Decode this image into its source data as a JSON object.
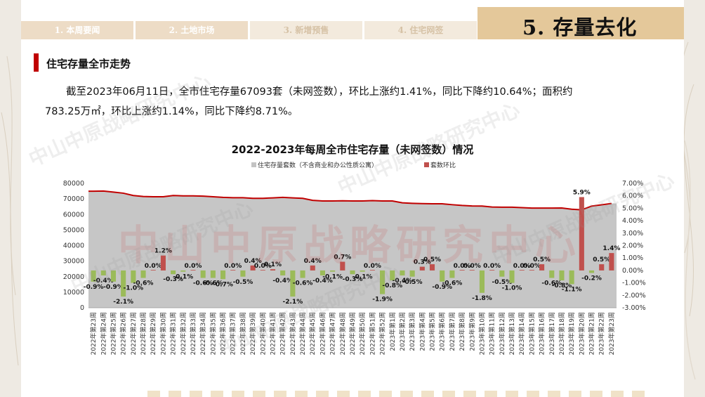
{
  "header": {
    "tabs": [
      "1. 本周要闻",
      "2. 土地市场",
      "3. 新增预售",
      "4. 住宅网签"
    ],
    "section_title": "5. 存量去化"
  },
  "section": {
    "title": "住宅存量全市走势"
  },
  "summary": {
    "line1": "截至2023年06月11日，全市住宅存量67093套（未网签数），环比上涨约1.41%，同比下降约10.64%；面积约",
    "line2": "783.25万㎡，环比上涨约1.14%，同比下降约8.71%。"
  },
  "watermark": {
    "text": "中山中原战略研究中心"
  },
  "colors": {
    "area": "#c3c3c3",
    "line": "#c00000",
    "pos_bar": "#c0504d",
    "neg_bar": "#9bbb59",
    "title_box": "#e4c89a"
  },
  "chart_data": {
    "type": "area",
    "title": "2022-2023年每周全市住宅存量（未网签数）情况",
    "legend": [
      "住宅存量套数（不含商业和办公性质公寓）",
      "套数环比"
    ],
    "legend_position": "top",
    "categories": [
      "2022年第23周",
      "2022年第24周",
      "2022年第25周",
      "2022年第26周",
      "2022年第27周",
      "2022年第28周",
      "2022年第29周",
      "2022年第30周",
      "2022年第31周",
      "2022年第32周",
      "2022年第33周",
      "2022年第34周",
      "2022年第35周",
      "2022年第36周",
      "2022年第37周",
      "2022年第38周",
      "2022年第39周",
      "2022年第40周",
      "2022年第41周",
      "2022年第42周",
      "2022年第43周",
      "2022年第44周",
      "2022年第45周",
      "2022年第46周",
      "2022年第47周",
      "2022年第48周",
      "2022年第49周",
      "2022年第50周",
      "2022年第51周",
      "2022年第52周",
      "2023年第1周",
      "2023年第2周",
      "2023年第3周",
      "2023年第4周",
      "2023年第5周",
      "2023年第6周",
      "2023年第7周",
      "2023年第8周",
      "2023年第9周",
      "2023年第10周",
      "2023年第11周",
      "2023年第12周",
      "2023年第13周",
      "2023年第14周",
      "2023年第15周",
      "2023年第16周",
      "2023年第17周",
      "2023年第18周",
      "2023年第19周",
      "2023年第20周",
      "2023年第21周",
      "2023年第22周",
      "2023年第23周"
    ],
    "series": [
      {
        "name": "住宅存量套数（不含商业和办公性质公寓）",
        "axis": "left",
        "type": "area",
        "values": [
          75000,
          75100,
          74400,
          73700,
          72200,
          71600,
          71400,
          71400,
          72200,
          72000,
          72000,
          71800,
          71400,
          71000,
          70800,
          70800,
          70400,
          70400,
          70700,
          71000,
          70700,
          70400,
          69100,
          68700,
          68700,
          68800,
          68700,
          68700,
          68900,
          68700,
          68700,
          67500,
          67200,
          67000,
          66900,
          66900,
          66300,
          65800,
          65500,
          65400,
          64800,
          64700,
          64700,
          64400,
          64100,
          64100,
          64100,
          64200,
          63400,
          63000,
          65400,
          66200,
          67093
        ]
      },
      {
        "name": "套数环比",
        "axis": "right",
        "type": "bar",
        "values": [
          -0.9,
          -0.4,
          -0.9,
          -2.1,
          -1.0,
          -0.6,
          0.0,
          1.2,
          -0.3,
          -0.1,
          0.0,
          -0.6,
          -0.6,
          -0.7,
          0.0,
          -0.5,
          0.4,
          0.0,
          0.1,
          -0.4,
          -2.1,
          -0.6,
          0.4,
          -0.4,
          -0.1,
          0.7,
          -0.3,
          -0.1,
          0.0,
          -1.9,
          -0.8,
          -0.4,
          -0.5,
          0.3,
          0.5,
          -0.9,
          -0.6,
          0.0,
          0.0,
          -1.8,
          0.0,
          -0.5,
          -1.0,
          0.0,
          0.0,
          0.5,
          -0.6,
          -0.8,
          -1.1,
          5.9,
          -0.2,
          0.5,
          1.4
        ],
        "labels": [
          "-0.9%",
          "-0.4%",
          "-0.9%",
          "-2.1%",
          "-1.0%",
          "-0.6%",
          "0.0%",
          "1.2%",
          "-0.3%",
          "-0.1%",
          "0.0%",
          "-0.6%",
          "-0.6%",
          "-0.7%",
          "0.0%",
          "-0.5%",
          "0.4%",
          "0.0%",
          "0.1%",
          "-0.4%",
          "-2.1%",
          "-0.6%",
          "0.4%",
          "-0.4%",
          "-0.1%",
          "0.7%",
          "-0.3%",
          "-0.1%",
          "0.0%",
          "-1.9%",
          "-0.8%",
          "-0.4%",
          "-0.5%",
          "0.3%",
          "0.5%",
          "-0.9%",
          "-0.6%",
          "0.0%",
          "0.0%",
          "-1.8%",
          "0.0%",
          "-0.5%",
          "-1.0%",
          "0.0%",
          "0.0%",
          "0.5%",
          "-0.6%",
          "-0.8%",
          "-1.1%",
          "5.9%",
          "-0.2%",
          "0.5%",
          "1.4%"
        ]
      }
    ],
    "ylim_left": [
      0,
      80000
    ],
    "yticks_left": [
      0,
      10000,
      20000,
      30000,
      40000,
      50000,
      60000,
      70000,
      80000
    ],
    "ylim_right": [
      -3.0,
      7.0
    ],
    "yticks_right": [
      "-3.00%",
      "-2.00%",
      "-1.00%",
      "0.00%",
      "1.00%",
      "2.00%",
      "3.00%",
      "4.00%",
      "5.00%",
      "6.00%",
      "7.00%"
    ],
    "grid": true
  }
}
